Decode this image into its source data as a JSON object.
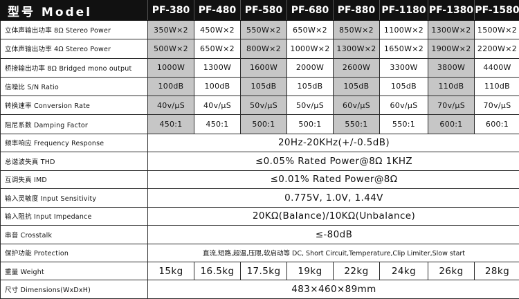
{
  "header": {
    "title": "型号 Model",
    "models": [
      "PF-380",
      "PF-480",
      "PF-580",
      "PF-680",
      "PF-880",
      "PF-1180",
      "PF-1380",
      "PF-1580"
    ]
  },
  "colors": {
    "header_bg": "#111111",
    "highlight": "#c6c6c6",
    "border": "#2a2a2a"
  },
  "highlighted_columns": [
    0,
    2,
    4,
    6
  ],
  "rows": {
    "stereo8": {
      "label": "立体声输出功率 8Ω  Stereo Power",
      "values": [
        "350W×2",
        "450W×2",
        "550W×2",
        "650W×2",
        "850W×2",
        "1100W×2",
        "1300W×2",
        "1500W×2"
      ]
    },
    "stereo4": {
      "label": "立体声输出功率 4Ω  Stereo Power",
      "values": [
        "500W×2",
        "650W×2",
        "800W×2",
        "1000W×2",
        "1300W×2",
        "1650W×2",
        "1900W×2",
        "2200W×2"
      ]
    },
    "bridged": {
      "label": "桥接输出功率 8Ω  Bridged mono output",
      "values": [
        "1000W",
        "1300W",
        "1600W",
        "2000W",
        "2600W",
        "3300W",
        "3800W",
        "4400W"
      ]
    },
    "snr": {
      "label": "信噪比  S/N Ratio",
      "values": [
        "100dB",
        "100dB",
        "105dB",
        "105dB",
        "105dB",
        "105dB",
        "110dB",
        "110dB"
      ]
    },
    "slew": {
      "label": "转换速率  Conversion Rate",
      "values": [
        "40v/μS",
        "40v/μS",
        "50v/μS",
        "50v/μS",
        "60v/μS",
        "60v/μS",
        "70v/μS",
        "70v/μS"
      ]
    },
    "damping": {
      "label": "阻尼系数  Damping Factor",
      "values": [
        "450:1",
        "450:1",
        "500:1",
        "500:1",
        "550:1",
        "550:1",
        "600:1",
        "600:1"
      ]
    },
    "freq": {
      "label": "频率响应  Frequency Response",
      "value": "20Hz-20KHz(+/-0.5dB)"
    },
    "thd": {
      "label": "总谐波失真  THD",
      "value": "≤0.05% Rated Power@8Ω  1KHZ"
    },
    "imd": {
      "label": "互调失真  IMD",
      "value": "≤0.01% Rated Power@8Ω"
    },
    "sensitivity": {
      "label": "输入灵敏度  Input Sensitivity",
      "value": "0.775V,  1.0V,  1.44V"
    },
    "impedance": {
      "label": "输入阻抗  Input Impedance",
      "value": "20KΩ(Balance)/10KΩ(Unbalance)"
    },
    "crosstalk": {
      "label": "串音  Crosstalk",
      "value": "≤-80dB"
    },
    "protection": {
      "label": "保护功能  Protection",
      "value": "直流,短路,超温,压限,软启动等 DC, Short Circuit,Temperature,Clip Limiter,Slow start"
    },
    "weight": {
      "label": "重量  Weight",
      "values": [
        "15kg",
        "16.5kg",
        "17.5kg",
        "19kg",
        "22kg",
        "24kg",
        "26kg",
        "28kg"
      ]
    },
    "dimensions": {
      "label": "尺寸  Dimensions(WxDxH)",
      "value": "483×460×89mm"
    }
  }
}
